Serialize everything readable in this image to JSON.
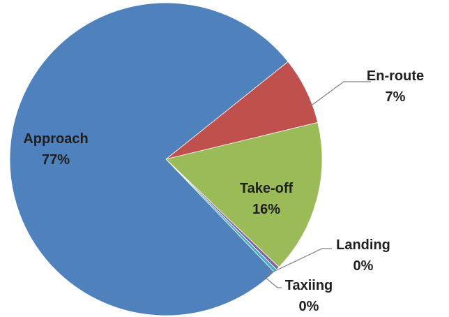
{
  "chart_data": {
    "type": "pie",
    "title": "",
    "slices": [
      {
        "name": "Approach",
        "value": 77,
        "label": "77%",
        "color": "#4f81bd"
      },
      {
        "name": "En-route",
        "value": 7,
        "label": "7%",
        "color": "#c0504d"
      },
      {
        "name": "Take-off",
        "value": 16,
        "label": "16%",
        "color": "#9bbb59"
      },
      {
        "name": "Landing",
        "value": 0,
        "label": "0%",
        "color": "#8064a2"
      },
      {
        "name": "Taxiing",
        "value": 0,
        "label": "0%",
        "color": "#4bacc6"
      }
    ],
    "legend": "none",
    "data_labels": "category name and percentage"
  }
}
